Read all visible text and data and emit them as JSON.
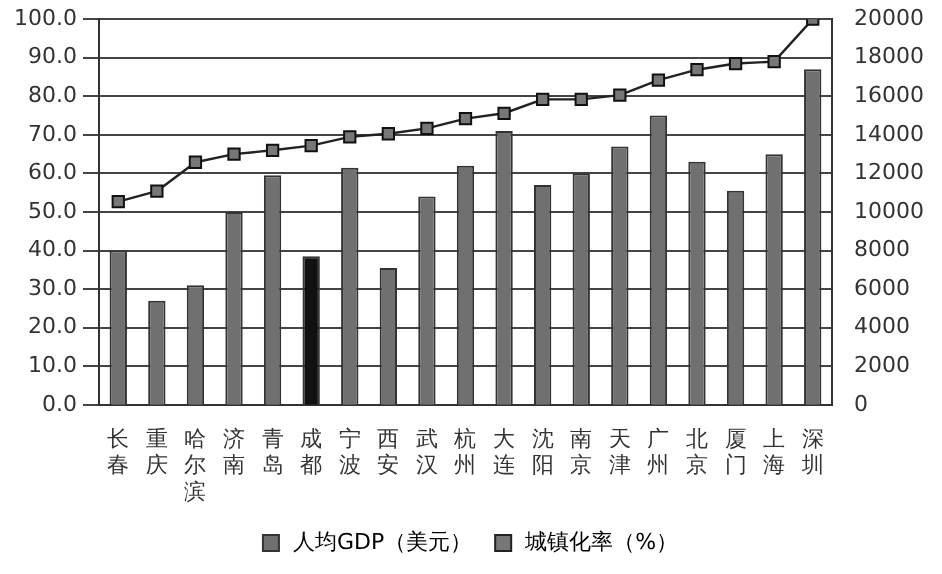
{
  "chart_data": {
    "type": "bar",
    "categories": [
      "长春",
      "重庆",
      "哈尔滨",
      "济南",
      "青岛",
      "成都",
      "宁波",
      "西安",
      "武汉",
      "杭州",
      "大连",
      "沈阳",
      "南京",
      "天津",
      "广州",
      "北京",
      "厦门",
      "上海",
      "深圳"
    ],
    "series": [
      {
        "name": "人均GDP（美元）",
        "axis": "y2",
        "colors": [
          "#707070",
          "#707070",
          "#707070",
          "#707070",
          "#707070",
          "#111111",
          "#707070",
          "#707070",
          "#707070",
          "#707070",
          "#707070",
          "#707070",
          "#707070",
          "#707070",
          "#707070",
          "#707070",
          "#707070",
          "#707070",
          "#707070"
        ],
        "values": [
          8000,
          5400,
          6200,
          10000,
          11900,
          7700,
          12300,
          7100,
          10800,
          12400,
          14200,
          11400,
          12000,
          13400,
          15000,
          12600,
          11100,
          13000,
          17400
        ]
      },
      {
        "name": "城镇化率（%）",
        "type": "line",
        "color": "#222222",
        "values": [
          52.7,
          55.4,
          62.9,
          65,
          66,
          67.2,
          69.5,
          70.3,
          71.7,
          74.2,
          75.6,
          79.2,
          79.2,
          80.3,
          84.2,
          86.9,
          88.5,
          89,
          100
        ]
      }
    ],
    "ylim": [
      0,
      100
    ],
    "yticks": [
      {
        "value": 0,
        "label": "0.0"
      },
      {
        "value": 10,
        "label": "10.0"
      },
      {
        "value": 20,
        "label": "20.0"
      },
      {
        "value": 30,
        "label": "30.0"
      },
      {
        "value": 40,
        "label": "40.0"
      },
      {
        "value": 50,
        "label": "50.0"
      },
      {
        "value": 60,
        "label": "60.0"
      },
      {
        "value": 70,
        "label": "70.0"
      },
      {
        "value": 80,
        "label": "80.0"
      },
      {
        "value": 90,
        "label": "90.0"
      },
      {
        "value": 100,
        "label": "100.0"
      }
    ],
    "y2lim": [
      0,
      20000
    ],
    "y2ticks": [
      0,
      2000,
      4000,
      6000,
      8000,
      10000,
      12000,
      14000,
      16000,
      18000,
      20000
    ],
    "grid": "y",
    "legend": "bottom",
    "marker": "square",
    "line_style": "solid"
  }
}
